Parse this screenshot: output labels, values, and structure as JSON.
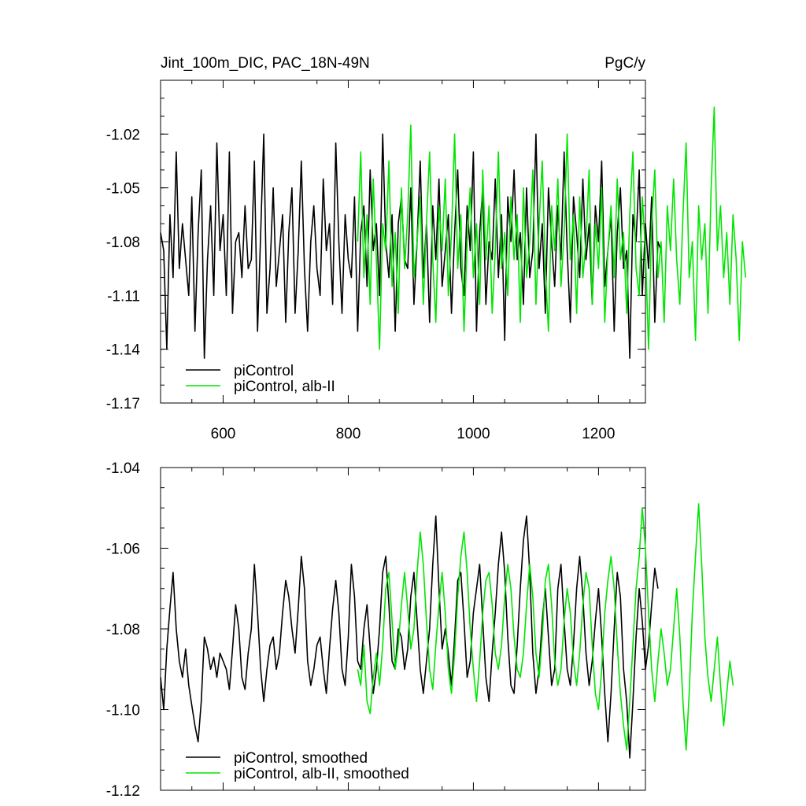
{
  "header": {
    "title": "Jint_100m_DIC, PAC_18N-49N",
    "units": "PgC/y"
  },
  "colors": {
    "control": "#000000",
    "alb": "#00e600"
  },
  "chart_data": [
    {
      "type": "line",
      "name": "top-panel-raw",
      "title": "Jint_100m_DIC, PAC_18N-49N",
      "xlabel": "",
      "ylabel": "",
      "xlim": [
        500,
        1275
      ],
      "ylim": [
        -1.17,
        -0.99
      ],
      "xticks": [
        600,
        800,
        1000,
        1200
      ],
      "xtick_labels": [
        "600",
        "800",
        "1000",
        "1200"
      ],
      "yticks": [
        -1.17,
        -1.14,
        -1.11,
        -1.08,
        -1.05,
        -1.02
      ],
      "ytick_labels": [
        "-1.17",
        "-1.14",
        "-1.11",
        "-1.08",
        "-1.05",
        "-1.02"
      ],
      "legend": {
        "position": "bottom-left",
        "entries": [
          "piControl",
          "piControl, alb-II"
        ]
      },
      "series": [
        {
          "name": "piControl",
          "x_start": 500,
          "x_step": 5,
          "values": [
            -1.075,
            -1.085,
            -1.14,
            -1.065,
            -1.1,
            -1.03,
            -1.095,
            -1.07,
            -1.09,
            -1.11,
            -1.055,
            -1.13,
            -1.075,
            -1.04,
            -1.145,
            -1.09,
            -1.06,
            -1.11,
            -1.025,
            -1.085,
            -1.065,
            -1.11,
            -1.03,
            -1.12,
            -1.08,
            -1.075,
            -1.1,
            -1.06,
            -1.095,
            -1.09,
            -1.035,
            -1.13,
            -1.075,
            -1.02,
            -1.12,
            -1.095,
            -1.05,
            -1.105,
            -1.085,
            -1.065,
            -1.125,
            -1.075,
            -1.05,
            -1.12,
            -1.085,
            -1.035,
            -1.095,
            -1.13,
            -1.08,
            -1.06,
            -1.095,
            -1.11,
            -1.045,
            -1.085,
            -1.07,
            -1.115,
            -1.025,
            -1.08,
            -1.12,
            -1.065,
            -1.09,
            -1.1,
            -1.055,
            -1.13,
            -1.075,
            -1.06,
            -1.105,
            -1.04,
            -1.085,
            -1.07,
            -1.11,
            -1.02,
            -1.08,
            -1.1,
            -1.065,
            -1.13,
            -1.07,
            -1.055,
            -1.09,
            -1.095,
            -1.05,
            -1.115,
            -1.08,
            -1.035,
            -1.1,
            -1.07,
            -1.125,
            -1.06,
            -1.09,
            -1.045,
            -1.105,
            -1.085,
            -1.065,
            -1.12,
            -1.075,
            -1.04,
            -1.095,
            -1.11,
            -1.06,
            -1.085,
            -1.03,
            -1.13,
            -1.075,
            -1.05,
            -1.115,
            -1.08,
            -1.09,
            -1.045,
            -1.1,
            -1.065,
            -1.135,
            -1.055,
            -1.08,
            -1.04,
            -1.09,
            -1.075,
            -1.115,
            -1.05,
            -1.1,
            -1.085,
            -1.02,
            -1.095,
            -1.07,
            -1.12,
            -1.05,
            -1.08,
            -1.105,
            -1.06,
            -1.09,
            -1.03,
            -1.085,
            -1.125,
            -1.055,
            -1.075,
            -1.1,
            -1.045,
            -1.09,
            -1.07,
            -1.115,
            -1.06,
            -1.08,
            -1.035,
            -1.105,
            -1.085,
            -1.065,
            -1.13,
            -1.075,
            -1.05,
            -1.095,
            -1.085,
            -1.145,
            -1.065,
            -1.08,
            -1.04,
            -1.11,
            -1.07,
            -1.095,
            -1.055,
            -1.125,
            -1.08,
            -1.085
          ]
        },
        {
          "name": "piControl, alb-II",
          "x_start": 815,
          "x_step": 5,
          "values": [
            -1.08,
            -1.03,
            -1.1,
            -1.065,
            -1.115,
            -1.045,
            -1.09,
            -1.14,
            -1.07,
            -1.085,
            -1.035,
            -1.105,
            -1.075,
            -1.12,
            -1.05,
            -1.095,
            -1.065,
            -1.015,
            -1.1,
            -1.08,
            -1.055,
            -1.115,
            -1.07,
            -1.03,
            -1.09,
            -1.125,
            -1.06,
            -1.085,
            -1.045,
            -1.11,
            -1.075,
            -1.02,
            -1.095,
            -1.065,
            -1.13,
            -1.08,
            -1.05,
            -1.1,
            -1.07,
            -1.115,
            -1.04,
            -1.09,
            -1.06,
            -1.12,
            -1.085,
            -1.03,
            -1.095,
            -1.075,
            -1.11,
            -1.055,
            -1.09,
            -1.065,
            -1.125,
            -1.05,
            -1.1,
            -1.08,
            -1.04,
            -1.115,
            -1.07,
            -1.035,
            -1.095,
            -1.13,
            -1.06,
            -1.085,
            -1.045,
            -1.105,
            -1.075,
            -1.02,
            -1.09,
            -1.065,
            -1.12,
            -1.055,
            -1.1,
            -1.08,
            -1.04,
            -1.115,
            -1.07,
            -1.095,
            -1.05,
            -1.125,
            -1.085,
            -1.06,
            -1.1,
            -1.045,
            -1.09,
            -1.075,
            -1.12,
            -1.065,
            -1.03,
            -1.095,
            -1.11,
            -1.055,
            -1.085,
            -1.14,
            -1.07,
            -1.04,
            -1.1,
            -1.08,
            -1.125,
            -1.06,
            -1.085,
            -1.045,
            -1.09,
            -1.115,
            -1.065,
            -1.025,
            -1.1,
            -1.08,
            -1.135,
            -1.06,
            -1.09,
            -1.07,
            -1.12,
            -1.05,
            -1.005,
            -1.085,
            -1.06,
            -1.1,
            -1.075,
            -1.115,
            -1.065,
            -1.09,
            -1.135,
            -1.08,
            -1.1
          ]
        }
      ]
    },
    {
      "type": "line",
      "name": "bottom-panel-smoothed",
      "xlabel": "",
      "ylabel": "",
      "xlim": [
        500,
        1275
      ],
      "ylim": [
        -1.12,
        -1.04
      ],
      "xticks": [
        600,
        800,
        1000,
        1200
      ],
      "xtick_labels": [],
      "yticks": [
        -1.12,
        -1.1,
        -1.08,
        -1.06,
        -1.04
      ],
      "ytick_labels": [
        "-1.12",
        "-1.10",
        "-1.08",
        "-1.06",
        "-1.04"
      ],
      "legend": {
        "position": "bottom-left",
        "entries": [
          "piControl, smoothed",
          "piControl, alb-II, smoothed"
        ]
      },
      "series": [
        {
          "name": "piControl, smoothed",
          "x_start": 500,
          "x_step": 5,
          "values": [
            -1.092,
            -1.1,
            -1.085,
            -1.075,
            -1.066,
            -1.08,
            -1.088,
            -1.092,
            -1.085,
            -1.094,
            -1.099,
            -1.104,
            -1.108,
            -1.098,
            -1.082,
            -1.085,
            -1.09,
            -1.087,
            -1.092,
            -1.086,
            -1.088,
            -1.09,
            -1.095,
            -1.085,
            -1.074,
            -1.08,
            -1.092,
            -1.095,
            -1.086,
            -1.08,
            -1.064,
            -1.076,
            -1.09,
            -1.098,
            -1.09,
            -1.084,
            -1.082,
            -1.09,
            -1.086,
            -1.076,
            -1.068,
            -1.072,
            -1.08,
            -1.086,
            -1.075,
            -1.062,
            -1.07,
            -1.088,
            -1.094,
            -1.09,
            -1.084,
            -1.082,
            -1.09,
            -1.096,
            -1.085,
            -1.075,
            -1.068,
            -1.076,
            -1.09,
            -1.094,
            -1.082,
            -1.064,
            -1.072,
            -1.088,
            -1.09,
            -1.08,
            -1.074,
            -1.085,
            -1.096,
            -1.09,
            -1.08,
            -1.066,
            -1.062,
            -1.074,
            -1.088,
            -1.09,
            -1.08,
            -1.082,
            -1.09,
            -1.085,
            -1.072,
            -1.066,
            -1.078,
            -1.09,
            -1.096,
            -1.088,
            -1.08,
            -1.064,
            -1.052,
            -1.07,
            -1.085,
            -1.08,
            -1.086,
            -1.094,
            -1.082,
            -1.068,
            -1.066,
            -1.078,
            -1.092,
            -1.088,
            -1.076,
            -1.07,
            -1.064,
            -1.078,
            -1.092,
            -1.098,
            -1.086,
            -1.076,
            -1.064,
            -1.056,
            -1.066,
            -1.082,
            -1.094,
            -1.096,
            -1.084,
            -1.07,
            -1.058,
            -1.052,
            -1.066,
            -1.086,
            -1.096,
            -1.09,
            -1.078,
            -1.07,
            -1.082,
            -1.094,
            -1.09,
            -1.07,
            -1.064,
            -1.078,
            -1.09,
            -1.094,
            -1.084,
            -1.07,
            -1.062,
            -1.072,
            -1.086,
            -1.094,
            -1.088,
            -1.078,
            -1.07,
            -1.082,
            -1.096,
            -1.108,
            -1.096,
            -1.08,
            -1.066,
            -1.072,
            -1.09,
            -1.098,
            -1.112,
            -1.098,
            -1.082,
            -1.07,
            -1.078,
            -1.09,
            -1.084,
            -1.074,
            -1.065,
            -1.07
          ]
        },
        {
          "name": "piControl, alb-II, smoothed",
          "x_start": 815,
          "x_step": 5,
          "values": [
            -1.09,
            -1.094,
            -1.084,
            -1.098,
            -1.101,
            -1.092,
            -1.086,
            -1.094,
            -1.084,
            -1.07,
            -1.066,
            -1.078,
            -1.09,
            -1.084,
            -1.074,
            -1.066,
            -1.075,
            -1.085,
            -1.08,
            -1.066,
            -1.056,
            -1.064,
            -1.078,
            -1.09,
            -1.095,
            -1.084,
            -1.074,
            -1.066,
            -1.076,
            -1.09,
            -1.096,
            -1.086,
            -1.072,
            -1.062,
            -1.056,
            -1.066,
            -1.08,
            -1.09,
            -1.098,
            -1.088,
            -1.076,
            -1.068,
            -1.066,
            -1.074,
            -1.086,
            -1.09,
            -1.084,
            -1.072,
            -1.064,
            -1.07,
            -1.082,
            -1.09,
            -1.092,
            -1.086,
            -1.074,
            -1.064,
            -1.072,
            -1.086,
            -1.092,
            -1.082,
            -1.068,
            -1.064,
            -1.074,
            -1.088,
            -1.094,
            -1.09,
            -1.078,
            -1.07,
            -1.076,
            -1.088,
            -1.094,
            -1.086,
            -1.074,
            -1.066,
            -1.07,
            -1.084,
            -1.096,
            -1.1,
            -1.09,
            -1.076,
            -1.068,
            -1.062,
            -1.07,
            -1.084,
            -1.096,
            -1.104,
            -1.11,
            -1.098,
            -1.084,
            -1.07,
            -1.062,
            -1.05,
            -1.06,
            -1.076,
            -1.09,
            -1.098,
            -1.088,
            -1.08,
            -1.086,
            -1.094,
            -1.09,
            -1.08,
            -1.07,
            -1.082,
            -1.098,
            -1.11,
            -1.096,
            -1.076,
            -1.062,
            -1.049,
            -1.064,
            -1.082,
            -1.092,
            -1.098,
            -1.09,
            -1.082,
            -1.094,
            -1.104,
            -1.096,
            -1.088,
            -1.094
          ]
        }
      ]
    }
  ]
}
